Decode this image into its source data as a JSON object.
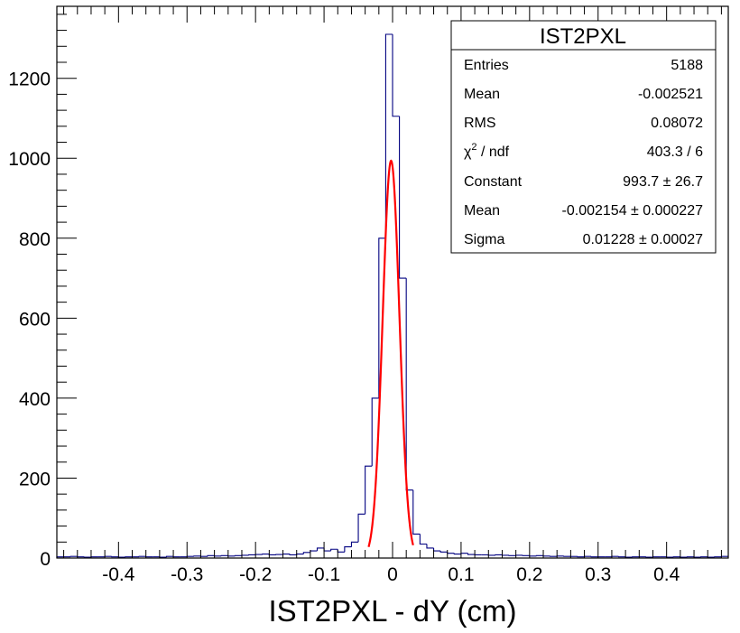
{
  "chart_data": {
    "type": "histogram",
    "title": "",
    "xlabel": "IST2PXL - dY (cm)",
    "ylabel": "",
    "xlim": [
      -0.49,
      0.49
    ],
    "ylim": [
      0,
      1380
    ],
    "bin_width": 0.01,
    "x_ticks": [
      -0.4,
      -0.3,
      -0.2,
      -0.1,
      0,
      0.1,
      0.2,
      0.3,
      0.4
    ],
    "x_tick_labels": [
      "-0.4",
      "-0.3",
      "-0.2",
      "-0.1",
      "0",
      "0.1",
      "0.2",
      "0.3",
      "0.4"
    ],
    "y_ticks": [
      0,
      200,
      400,
      600,
      800,
      1000,
      1200
    ],
    "y_tick_labels": [
      "0",
      "200",
      "400",
      "600",
      "800",
      "1000",
      "1200"
    ],
    "grid": false,
    "histogram_color": "#000080",
    "fit_color": "#ff0000",
    "bins": [
      [
        -0.49,
        3
      ],
      [
        -0.48,
        3
      ],
      [
        -0.47,
        4
      ],
      [
        -0.46,
        3
      ],
      [
        -0.45,
        2
      ],
      [
        -0.44,
        3
      ],
      [
        -0.43,
        3
      ],
      [
        -0.42,
        4
      ],
      [
        -0.41,
        3
      ],
      [
        -0.4,
        2
      ],
      [
        -0.39,
        3
      ],
      [
        -0.38,
        3
      ],
      [
        -0.37,
        4
      ],
      [
        -0.36,
        3
      ],
      [
        -0.35,
        3
      ],
      [
        -0.34,
        2
      ],
      [
        -0.33,
        4
      ],
      [
        -0.32,
        3
      ],
      [
        -0.31,
        3
      ],
      [
        -0.3,
        4
      ],
      [
        -0.29,
        5
      ],
      [
        -0.28,
        4
      ],
      [
        -0.27,
        6
      ],
      [
        -0.26,
        5
      ],
      [
        -0.25,
        6
      ],
      [
        -0.24,
        5
      ],
      [
        -0.23,
        6
      ],
      [
        -0.22,
        7
      ],
      [
        -0.21,
        8
      ],
      [
        -0.2,
        9
      ],
      [
        -0.19,
        10
      ],
      [
        -0.18,
        8
      ],
      [
        -0.17,
        9
      ],
      [
        -0.16,
        10
      ],
      [
        -0.15,
        8
      ],
      [
        -0.14,
        10
      ],
      [
        -0.13,
        14
      ],
      [
        -0.12,
        18
      ],
      [
        -0.11,
        25
      ],
      [
        -0.1,
        18
      ],
      [
        -0.09,
        22
      ],
      [
        -0.08,
        15
      ],
      [
        -0.07,
        28
      ],
      [
        -0.06,
        40
      ],
      [
        -0.05,
        110
      ],
      [
        -0.04,
        230
      ],
      [
        -0.03,
        400
      ],
      [
        -0.02,
        800
      ],
      [
        -0.01,
        1310
      ],
      [
        0.0,
        1105
      ],
      [
        0.01,
        700
      ],
      [
        0.02,
        170
      ],
      [
        0.03,
        60
      ],
      [
        0.04,
        35
      ],
      [
        0.05,
        25
      ],
      [
        0.06,
        18
      ],
      [
        0.07,
        15
      ],
      [
        0.08,
        12
      ],
      [
        0.09,
        10
      ],
      [
        0.1,
        12
      ],
      [
        0.11,
        9
      ],
      [
        0.12,
        8
      ],
      [
        0.13,
        8
      ],
      [
        0.14,
        7
      ],
      [
        0.15,
        8
      ],
      [
        0.16,
        7
      ],
      [
        0.17,
        6
      ],
      [
        0.18,
        7
      ],
      [
        0.19,
        6
      ],
      [
        0.2,
        5
      ],
      [
        0.21,
        6
      ],
      [
        0.22,
        5
      ],
      [
        0.23,
        4
      ],
      [
        0.24,
        5
      ],
      [
        0.25,
        4
      ],
      [
        0.26,
        4
      ],
      [
        0.27,
        3
      ],
      [
        0.28,
        4
      ],
      [
        0.29,
        3
      ],
      [
        0.3,
        3
      ],
      [
        0.31,
        3
      ],
      [
        0.32,
        4
      ],
      [
        0.33,
        3
      ],
      [
        0.34,
        2
      ],
      [
        0.35,
        3
      ],
      [
        0.36,
        3
      ],
      [
        0.37,
        2
      ],
      [
        0.38,
        3
      ],
      [
        0.39,
        3
      ],
      [
        0.4,
        2
      ],
      [
        0.41,
        3
      ],
      [
        0.42,
        2
      ],
      [
        0.43,
        3
      ],
      [
        0.44,
        2
      ],
      [
        0.45,
        3
      ],
      [
        0.46,
        2
      ],
      [
        0.47,
        3
      ],
      [
        0.48,
        4
      ]
    ],
    "fit": {
      "function": "gaus",
      "constant": 993.7,
      "mean": -0.002154,
      "sigma": 0.01228,
      "range": [
        -0.035,
        0.03
      ]
    }
  },
  "stats_box": {
    "title": "IST2PXL",
    "rows": [
      {
        "label": "Entries",
        "value": "5188"
      },
      {
        "label": "Mean",
        "value": "-0.002521"
      },
      {
        "label": "RMS",
        "value": "0.08072"
      },
      {
        "label_main": "χ",
        "label_sup": "2",
        "label_rest": " / ndf",
        "value": "403.3 / 6"
      },
      {
        "label": "Constant",
        "value": "993.7 ± 26.7"
      },
      {
        "label": "Mean",
        "value": "-0.002154 ± 0.000227"
      },
      {
        "label": "Sigma",
        "value": "0.01228 ± 0.00027"
      }
    ]
  }
}
